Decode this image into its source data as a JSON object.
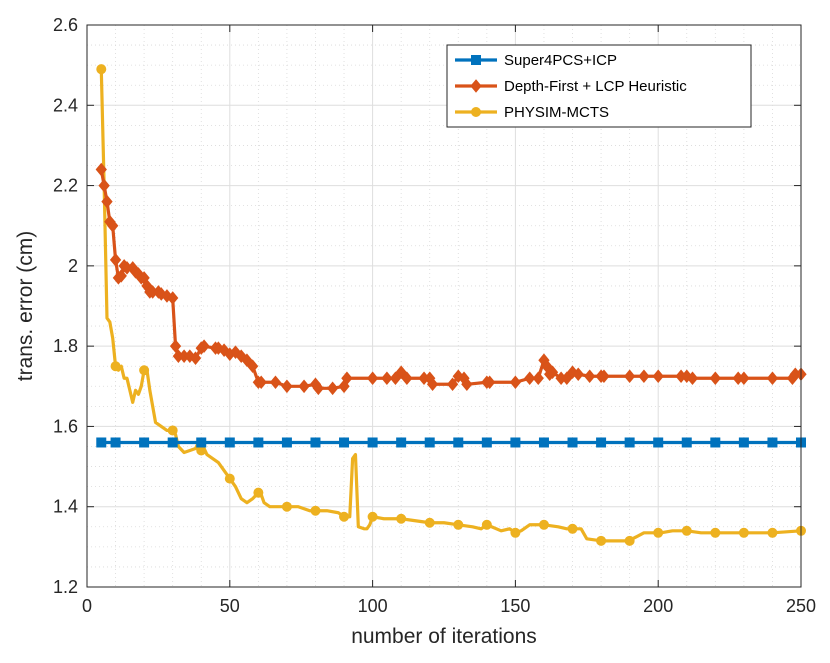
{
  "chart_data": {
    "type": "line",
    "title": "",
    "xlabel": "number of iterations",
    "ylabel": "trans. error (cm)",
    "xlim": [
      0,
      250
    ],
    "ylim": [
      1.2,
      2.6
    ],
    "xticks": [
      0,
      50,
      100,
      150,
      200,
      250
    ],
    "yticks": [
      1.2,
      1.4,
      1.6,
      1.8,
      2,
      2.2,
      2.4,
      2.6
    ],
    "xtick_labels": [
      "0",
      "50",
      "100",
      "150",
      "200",
      "250"
    ],
    "ytick_labels": [
      "1.2",
      "1.4",
      "1.6",
      "1.8",
      "2",
      "2.2",
      "2.4",
      "2.6"
    ],
    "grid": true,
    "minor_grid": true,
    "legend_position": "top-right",
    "series": [
      {
        "name": "Super4PCS+ICP",
        "color": "#0072BD",
        "marker": "square",
        "x": [
          5,
          250
        ],
        "y": [
          1.56,
          1.56
        ],
        "marker_x": [
          5,
          10,
          20,
          30,
          40,
          50,
          60,
          70,
          80,
          90,
          100,
          110,
          120,
          130,
          140,
          150,
          160,
          170,
          180,
          190,
          200,
          210,
          220,
          230,
          240,
          250
        ]
      },
      {
        "name": "Depth-First + LCP Heuristic",
        "color": "#D95319",
        "marker": "diamond",
        "x": [
          5,
          6,
          7,
          8,
          9,
          10,
          11,
          12,
          13,
          14,
          16,
          17,
          18,
          19,
          20,
          21,
          22,
          23,
          25,
          26,
          28,
          30,
          31,
          32,
          34,
          36,
          38,
          40,
          41,
          45,
          46,
          48,
          50,
          52,
          54,
          56,
          58,
          60,
          61,
          66,
          70,
          76,
          80,
          81,
          86,
          90,
          91,
          100,
          105,
          108,
          110,
          112,
          118,
          120,
          121,
          128,
          130,
          132,
          133,
          140,
          141,
          150,
          155,
          158,
          160,
          161,
          162,
          163,
          166,
          168,
          170,
          172,
          176,
          180,
          181,
          190,
          195,
          200,
          208,
          210,
          212,
          220,
          228,
          230,
          240,
          247,
          248,
          250
        ],
        "y": [
          2.24,
          2.2,
          2.16,
          2.11,
          2.1,
          2.015,
          1.97,
          1.975,
          2.0,
          1.995,
          1.995,
          1.985,
          1.98,
          1.97,
          1.97,
          1.95,
          1.935,
          1.935,
          1.935,
          1.93,
          1.925,
          1.92,
          1.8,
          1.775,
          1.775,
          1.775,
          1.77,
          1.795,
          1.8,
          1.795,
          1.795,
          1.79,
          1.78,
          1.785,
          1.775,
          1.765,
          1.75,
          1.71,
          1.71,
          1.71,
          1.7,
          1.7,
          1.705,
          1.695,
          1.695,
          1.7,
          1.72,
          1.72,
          1.72,
          1.72,
          1.735,
          1.72,
          1.72,
          1.72,
          1.705,
          1.705,
          1.725,
          1.72,
          1.705,
          1.71,
          1.71,
          1.71,
          1.72,
          1.72,
          1.765,
          1.75,
          1.73,
          1.735,
          1.72,
          1.72,
          1.735,
          1.73,
          1.725,
          1.725,
          1.725,
          1.725,
          1.725,
          1.725,
          1.725,
          1.725,
          1.72,
          1.72,
          1.72,
          1.72,
          1.72,
          1.72,
          1.73,
          1.73
        ]
      },
      {
        "name": "PHYSIM-MCTS",
        "color": "#EDB120",
        "marker": "circle",
        "x": [
          5,
          6,
          7,
          8,
          9,
          10,
          11,
          12,
          13,
          14,
          15,
          16,
          17,
          18,
          19,
          20,
          21,
          22,
          23,
          24,
          26,
          28,
          30,
          31,
          32,
          34,
          36,
          38,
          39,
          40,
          41,
          42,
          44,
          46,
          48,
          50,
          52,
          54,
          56,
          58,
          60,
          61,
          62,
          63,
          64,
          66,
          68,
          70,
          74,
          78,
          80,
          84,
          88,
          90,
          92,
          93,
          94,
          95,
          97,
          98,
          99,
          100,
          104,
          110,
          115,
          120,
          125,
          130,
          135,
          138,
          140,
          145,
          148,
          150,
          152,
          155,
          158,
          160,
          165,
          168,
          170,
          173,
          175,
          180,
          185,
          190,
          191,
          195,
          200,
          201,
          205,
          210,
          215,
          220,
          230,
          240,
          250
        ],
        "y": [
          2.49,
          2.2,
          1.87,
          1.86,
          1.82,
          1.75,
          1.74,
          1.75,
          1.72,
          1.72,
          1.69,
          1.66,
          1.69,
          1.68,
          1.7,
          1.74,
          1.74,
          1.69,
          1.65,
          1.61,
          1.6,
          1.59,
          1.59,
          1.58,
          1.55,
          1.535,
          1.54,
          1.545,
          1.56,
          1.54,
          1.545,
          1.53,
          1.52,
          1.51,
          1.49,
          1.47,
          1.45,
          1.42,
          1.41,
          1.42,
          1.435,
          1.43,
          1.41,
          1.405,
          1.4,
          1.4,
          1.4,
          1.4,
          1.4,
          1.39,
          1.39,
          1.39,
          1.385,
          1.375,
          1.375,
          1.52,
          1.53,
          1.35,
          1.345,
          1.345,
          1.355,
          1.375,
          1.37,
          1.37,
          1.365,
          1.36,
          1.36,
          1.355,
          1.35,
          1.345,
          1.355,
          1.34,
          1.345,
          1.335,
          1.34,
          1.355,
          1.355,
          1.355,
          1.35,
          1.345,
          1.345,
          1.345,
          1.32,
          1.315,
          1.315,
          1.315,
          1.32,
          1.335,
          1.335,
          1.335,
          1.34,
          1.34,
          1.335,
          1.335,
          1.335,
          1.335,
          1.34
        ],
        "marker_x": [
          5,
          10,
          20,
          30,
          40,
          50,
          60,
          70,
          80,
          90,
          100,
          110,
          120,
          130,
          140,
          150,
          160,
          170,
          180,
          190,
          200,
          210,
          220,
          230,
          240,
          250
        ]
      }
    ]
  }
}
